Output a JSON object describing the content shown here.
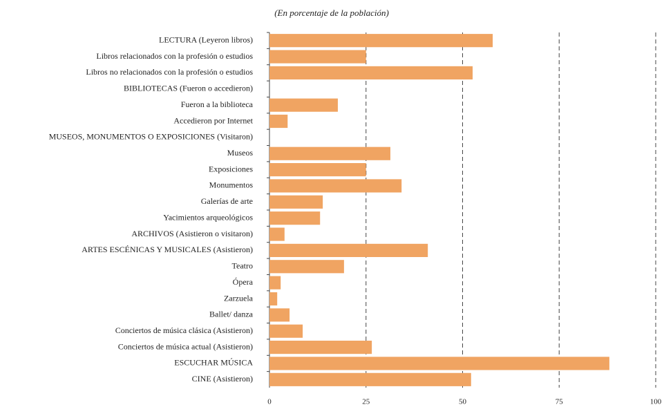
{
  "chart_data": {
    "type": "hbar",
    "subtitle": "(En porcentaje de la población)",
    "categories": [
      "LECTURA (Leyeron libros)",
      "Libros relacionados con la profesión o estudios",
      "Libros no relacionados con la profesión o estudios",
      "BIBLIOTECAS (Fueron o accedieron)",
      "Fueron a la biblioteca",
      "Accedieron por Internet",
      "MUSEOS, MONUMENTOS O EXPOSICIONES (Visitaron)",
      "Museos",
      "Exposiciones",
      "Monumentos",
      "Galerías de arte",
      "Yacimientos arqueológicos",
      "ARCHIVOS (Asistieron o visitaron)",
      "ARTES ESCÉNICAS Y MUSICALES  (Asistieron)",
      "Teatro",
      "Ópera",
      "Zarzuela",
      "Ballet/ danza",
      "Conciertos de música clásica (Asistieron)",
      "Conciertos de música actual (Asistieron)",
      "ESCUCHAR MÚSICA",
      "CINE  (Asistieron)"
    ],
    "values": [
      57.8,
      25.0,
      52.6,
      null,
      17.7,
      4.7,
      null,
      31.3,
      25.0,
      34.2,
      13.8,
      13.1,
      3.9,
      41.0,
      19.3,
      2.9,
      2.0,
      5.2,
      8.6,
      26.5,
      88.0,
      52.2
    ],
    "color": "#f0a462",
    "xlim": [
      0,
      100
    ],
    "xticks": [
      0,
      25,
      50,
      75,
      100
    ],
    "grid": true
  }
}
